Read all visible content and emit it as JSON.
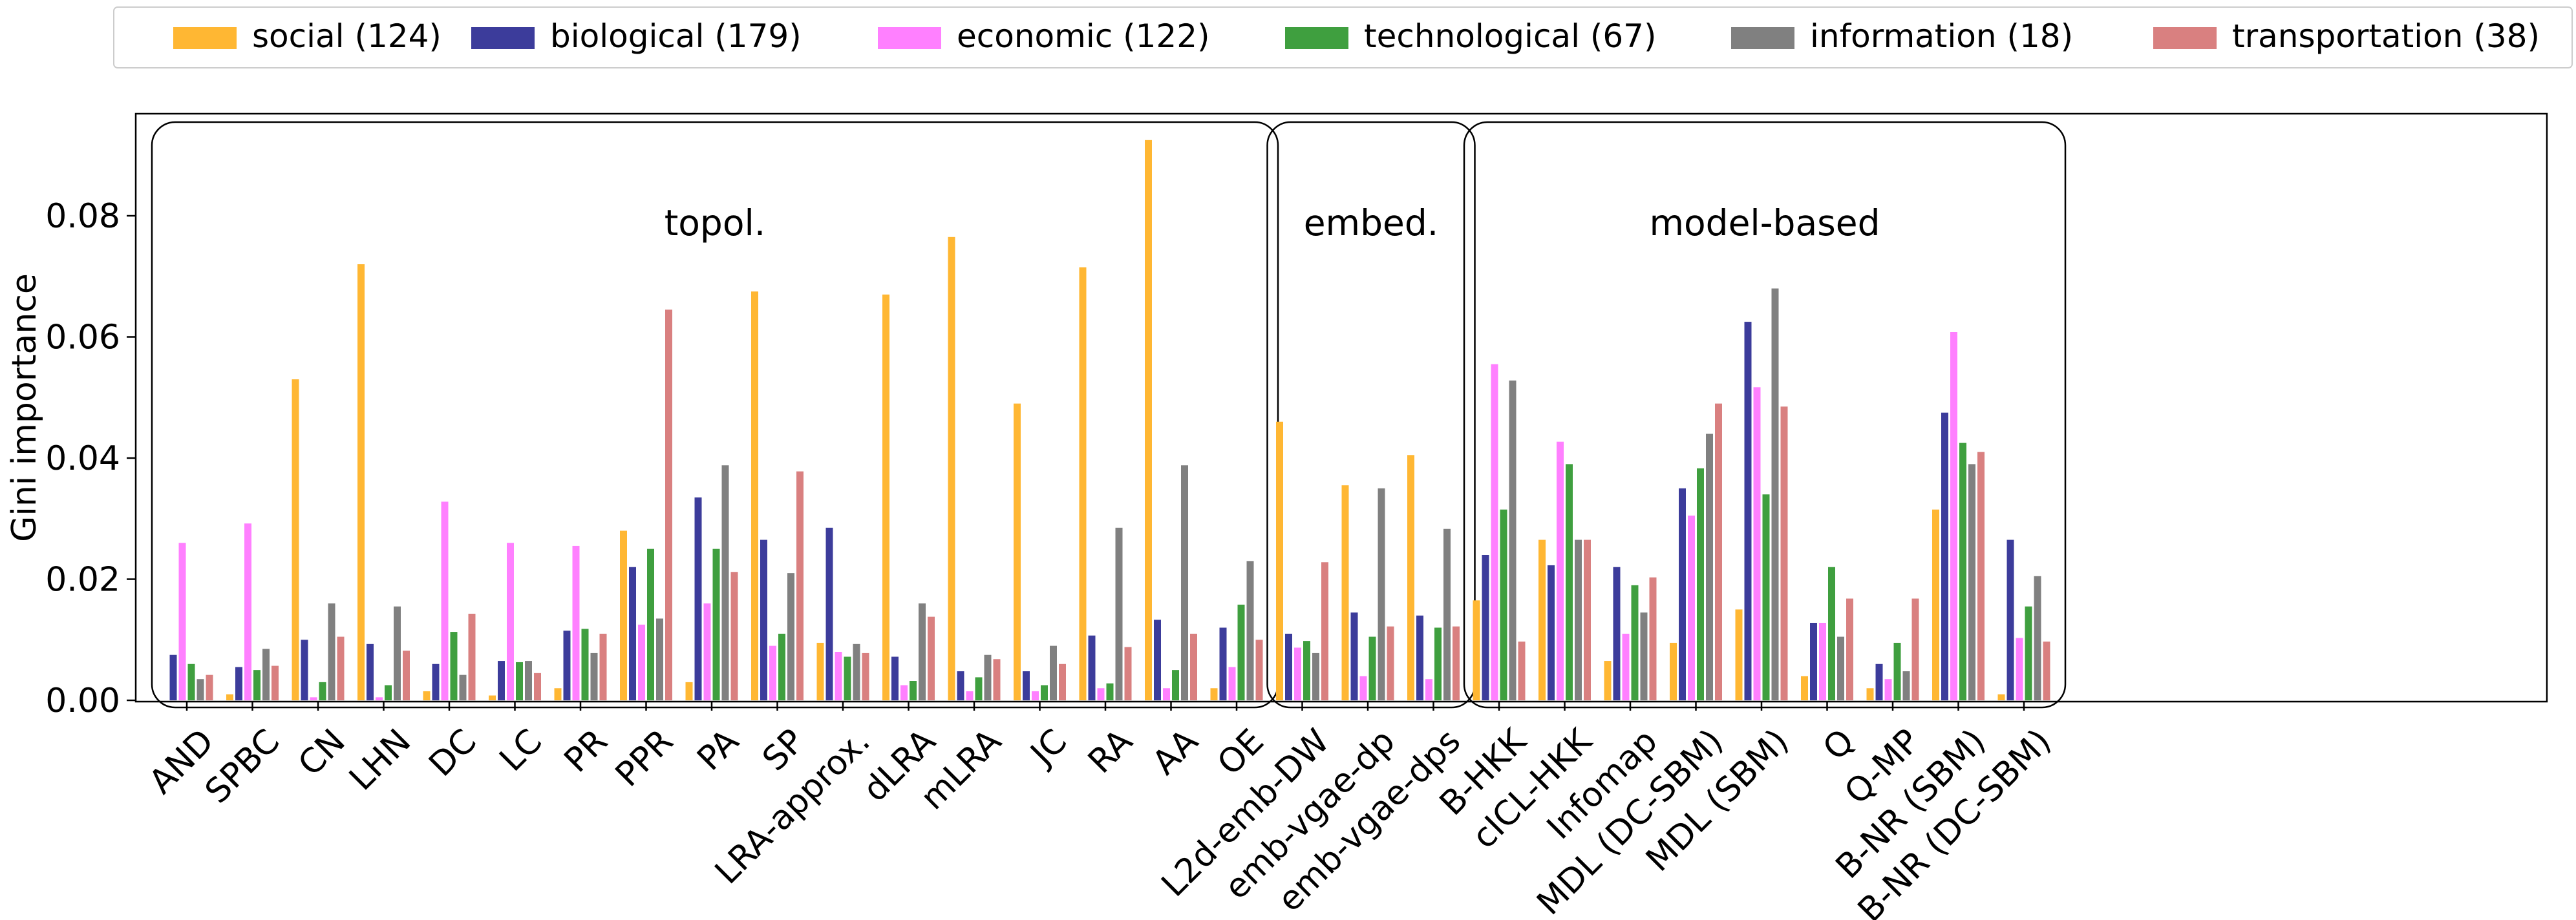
{
  "chart_data": {
    "type": "bar",
    "ylabel": "Gini importance",
    "xlabel": "",
    "ylim": [
      0,
      0.097
    ],
    "yticks": [
      "0.00",
      "0.02",
      "0.04",
      "0.06",
      "0.08"
    ],
    "legend_position": "top",
    "categories": [
      "AND",
      "SPBC",
      "CN",
      "LHN",
      "DC",
      "LC",
      "PR",
      "PPR",
      "PA",
      "SP",
      "LRA-approx.",
      "dLRA",
      "mLRA",
      "JC",
      "RA",
      "AA",
      "OE",
      "L2d-emb-DW",
      "emb-vgae-dp",
      "emb-vgae-dps",
      "B-HKK",
      "cICL-HKK",
      "Infomap",
      "MDL (DC-SBM)",
      "MDL (SBM)",
      "Q",
      "Q-MP",
      "B-NR (SBM)",
      "B-NR (DC-SBM)"
    ],
    "groups": [
      {
        "label": "topol.",
        "first": 0,
        "last": 16
      },
      {
        "label": "embed.",
        "first": 17,
        "last": 19
      },
      {
        "label": "model-based",
        "first": 20,
        "last": 28
      }
    ],
    "series": [
      {
        "name": "social (124)",
        "color": "#ffb733",
        "values": [
          0.0,
          0.001,
          0.053,
          0.072,
          0.0015,
          0.0008,
          0.002,
          0.028,
          0.003,
          0.0675,
          0.0095,
          0.067,
          0.0765,
          0.049,
          0.0715,
          0.0925,
          0.002,
          0.046,
          0.0355,
          0.0405,
          0.0165,
          0.0265,
          0.0065,
          0.0095,
          0.015,
          0.004,
          0.002,
          0.0315,
          0.001
        ]
      },
      {
        "name": "biological (179)",
        "color": "#3c3c9b",
        "values": [
          0.0075,
          0.0055,
          0.01,
          0.0093,
          0.006,
          0.0065,
          0.0115,
          0.022,
          0.0335,
          0.0265,
          0.0285,
          0.0072,
          0.0048,
          0.0048,
          0.0107,
          0.0133,
          0.012,
          0.011,
          0.0145,
          0.014,
          0.024,
          0.0223,
          0.022,
          0.035,
          0.0625,
          0.0128,
          0.006,
          0.0475,
          0.0265
        ]
      },
      {
        "name": "economic (122)",
        "color": "#ff80ff",
        "values": [
          0.026,
          0.0292,
          0.0005,
          0.0005,
          0.0328,
          0.026,
          0.0255,
          0.0125,
          0.016,
          0.009,
          0.008,
          0.0025,
          0.0015,
          0.0015,
          0.002,
          0.002,
          0.0055,
          0.0087,
          0.004,
          0.0035,
          0.0555,
          0.0427,
          0.011,
          0.0305,
          0.0517,
          0.0128,
          0.0035,
          0.0608,
          0.0103
        ]
      },
      {
        "name": "technological (67)",
        "color": "#3f9f3f",
        "values": [
          0.006,
          0.005,
          0.003,
          0.0025,
          0.0113,
          0.0063,
          0.0118,
          0.025,
          0.025,
          0.011,
          0.0072,
          0.0032,
          0.0038,
          0.0025,
          0.0028,
          0.005,
          0.0158,
          0.0098,
          0.0105,
          0.012,
          0.0315,
          0.039,
          0.019,
          0.0383,
          0.034,
          0.022,
          0.0095,
          0.0425,
          0.0155
        ]
      },
      {
        "name": "information (18)",
        "color": "#808080",
        "values": [
          0.0035,
          0.0085,
          0.016,
          0.0155,
          0.0042,
          0.0065,
          0.0078,
          0.0135,
          0.0388,
          0.021,
          0.0093,
          0.016,
          0.0075,
          0.009,
          0.0285,
          0.0388,
          0.023,
          0.0078,
          0.035,
          0.0283,
          0.0528,
          0.0265,
          0.0145,
          0.044,
          0.068,
          0.0105,
          0.0048,
          0.039,
          0.0205
        ]
      },
      {
        "name": "transportation (38)",
        "color": "#d98080",
        "values": [
          0.0042,
          0.0057,
          0.0105,
          0.0082,
          0.0143,
          0.0045,
          0.011,
          0.0645,
          0.0212,
          0.0378,
          0.0078,
          0.0138,
          0.0068,
          0.006,
          0.0088,
          0.011,
          0.01,
          0.0228,
          0.0122,
          0.0122,
          0.0097,
          0.0265,
          0.0203,
          0.049,
          0.0485,
          0.0168,
          0.0168,
          0.041,
          0.0097
        ]
      }
    ]
  }
}
